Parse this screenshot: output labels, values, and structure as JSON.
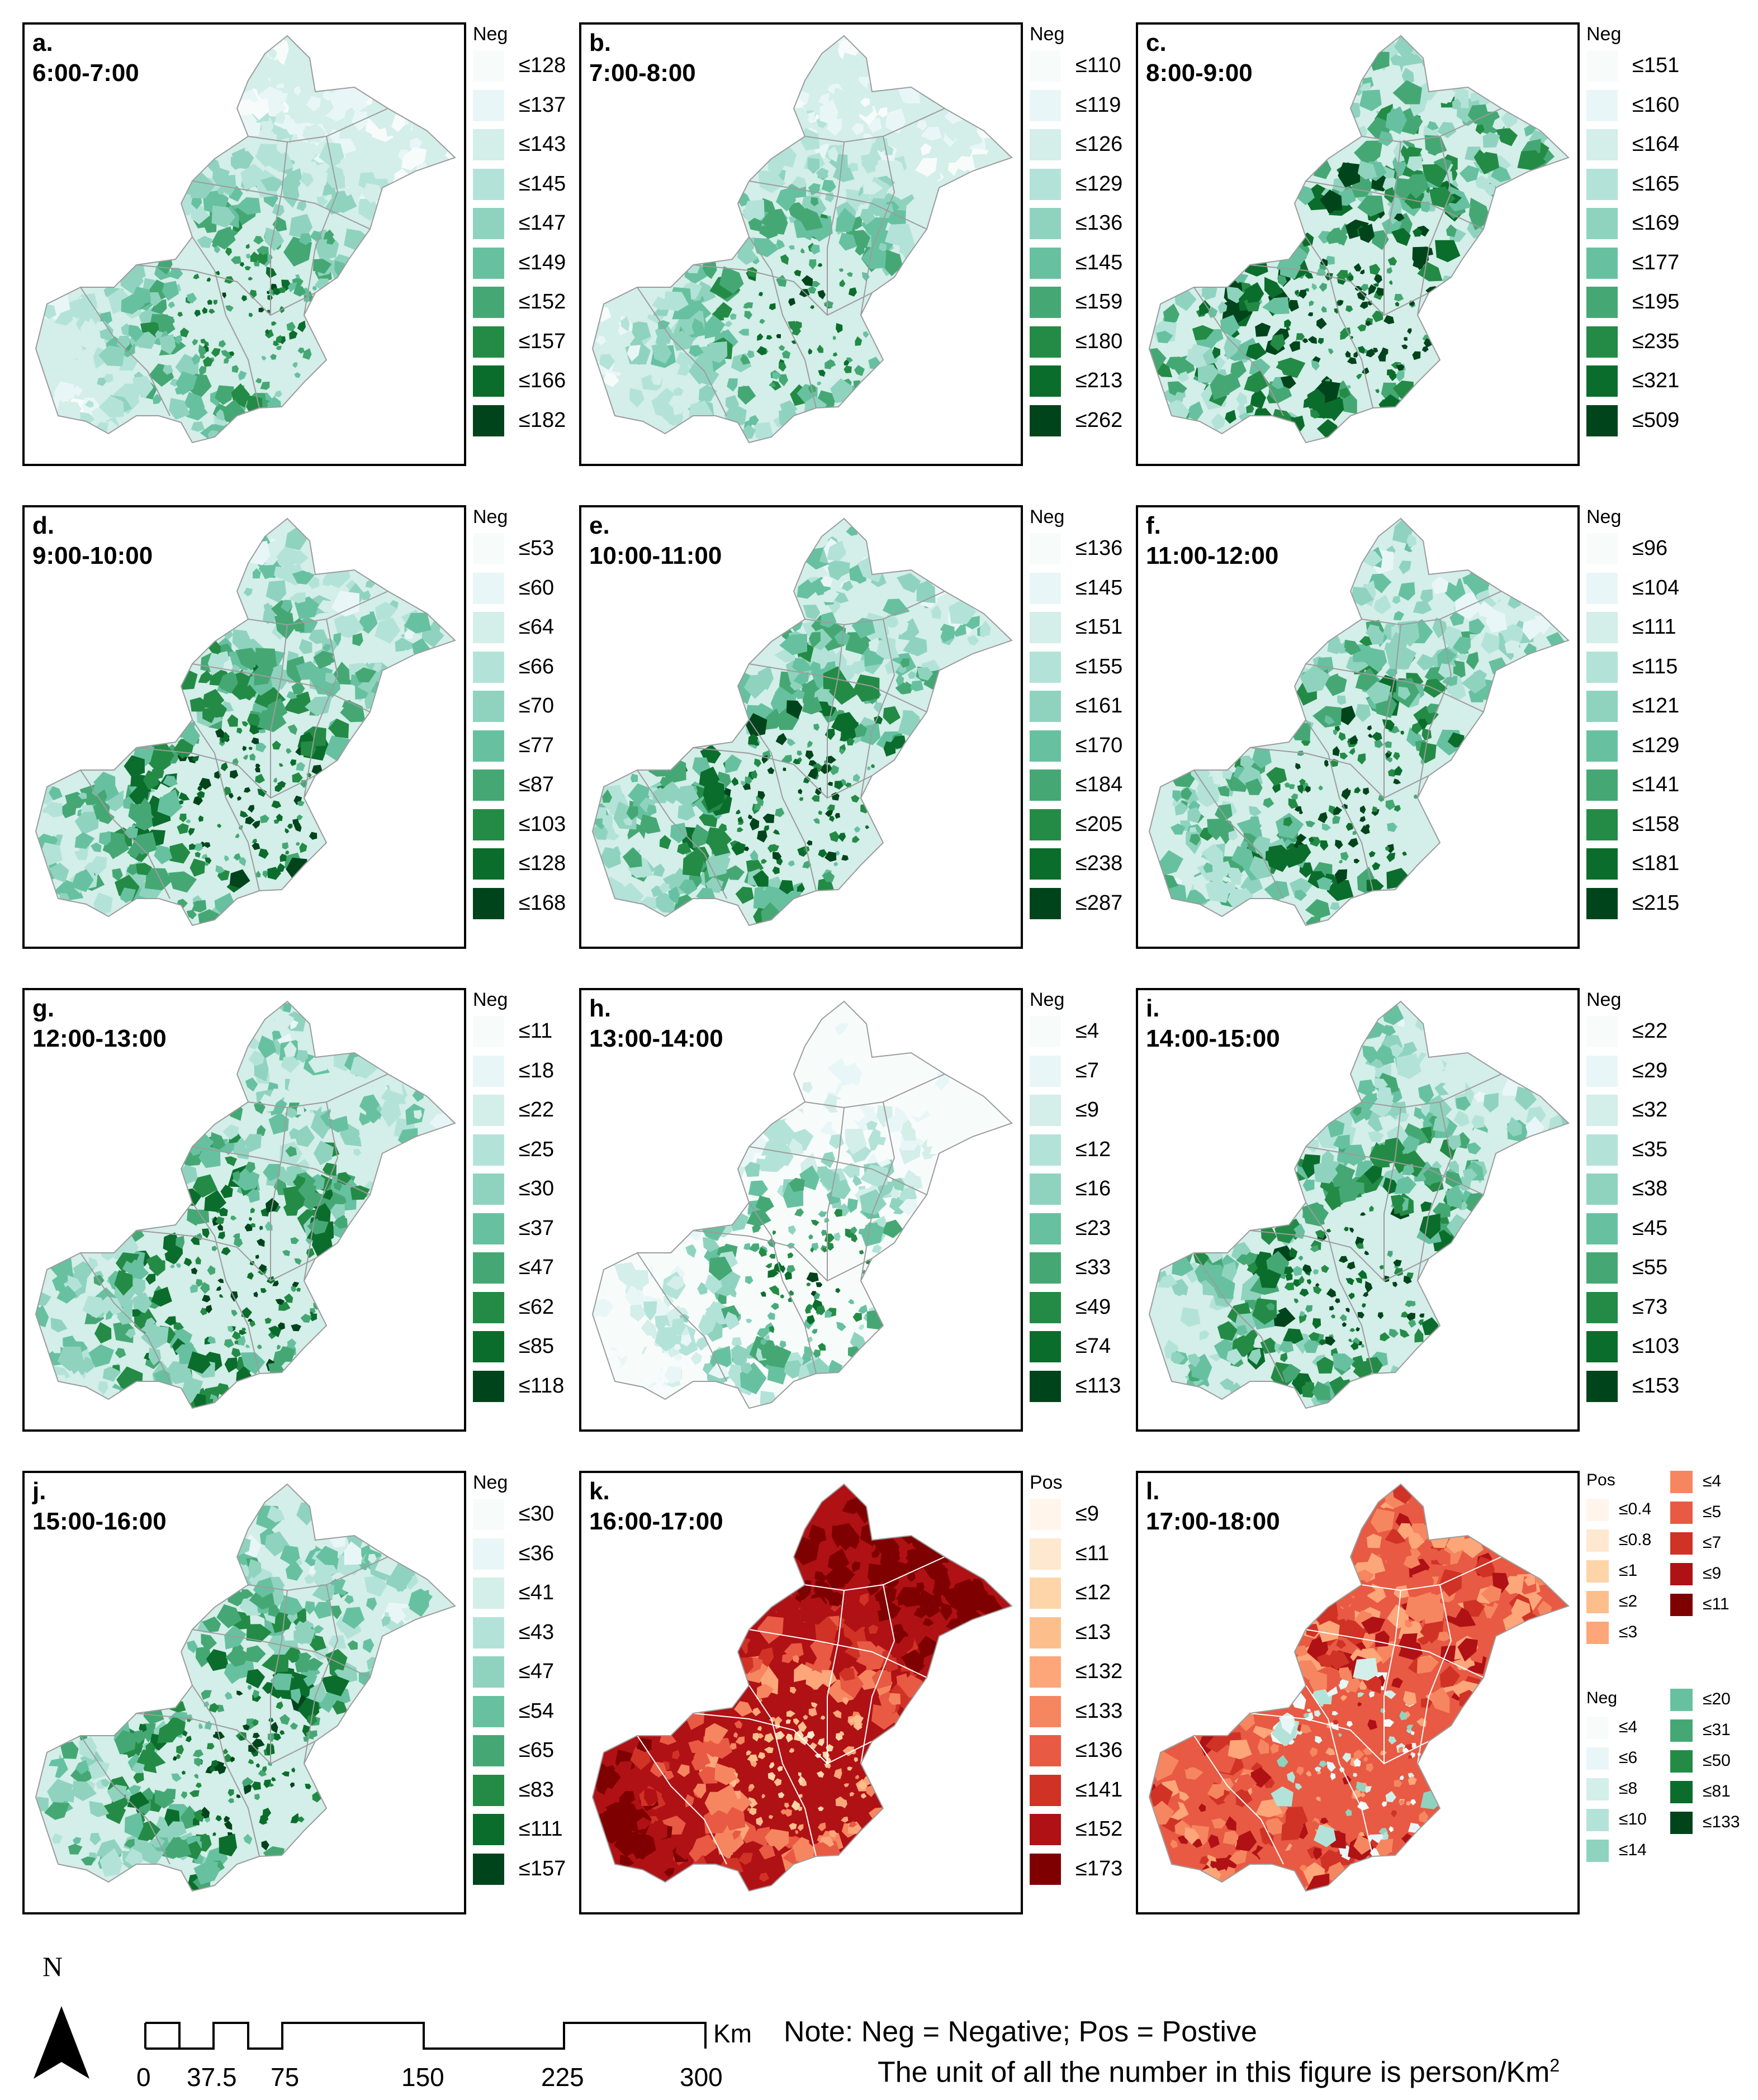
{
  "panels": [
    {
      "id": "a",
      "label": "a.",
      "time": "6:00-7:00",
      "legend_title": "Neg",
      "scheme": "green",
      "items": [
        "≤128",
        "≤137",
        "≤143",
        "≤145",
        "≤147",
        "≤149",
        "≤152",
        "≤157",
        "≤166",
        "≤182"
      ]
    },
    {
      "id": "b",
      "label": "b.",
      "time": "7:00-8:00",
      "legend_title": "Neg",
      "scheme": "green",
      "items": [
        "≤110",
        "≤119",
        "≤126",
        "≤129",
        "≤136",
        "≤145",
        "≤159",
        "≤180",
        "≤213",
        "≤262"
      ]
    },
    {
      "id": "c",
      "label": "c.",
      "time": "8:00-9:00",
      "legend_title": "Neg",
      "scheme": "green",
      "items": [
        "≤151",
        "≤160",
        "≤164",
        "≤165",
        "≤169",
        "≤177",
        "≤195",
        "≤235",
        "≤321",
        "≤509"
      ]
    },
    {
      "id": "d",
      "label": "d.",
      "time": "9:00-10:00",
      "legend_title": "Neg",
      "scheme": "green",
      "items": [
        "≤53",
        "≤60",
        "≤64",
        "≤66",
        "≤70",
        "≤77",
        "≤87",
        "≤103",
        "≤128",
        "≤168"
      ]
    },
    {
      "id": "e",
      "label": "e.",
      "time": "10:00-11:00",
      "legend_title": "Neg",
      "scheme": "green",
      "items": [
        "≤136",
        "≤145",
        "≤151",
        "≤155",
        "≤161",
        "≤170",
        "≤184",
        "≤205",
        "≤238",
        "≤287"
      ]
    },
    {
      "id": "f",
      "label": "f.",
      "time": "11:00-12:00",
      "legend_title": "Neg",
      "scheme": "green",
      "items": [
        "≤96",
        "≤104",
        "≤111",
        "≤115",
        "≤121",
        "≤129",
        "≤141",
        "≤158",
        "≤181",
        "≤215"
      ]
    },
    {
      "id": "g",
      "label": "g.",
      "time": "12:00-13:00",
      "legend_title": "Neg",
      "scheme": "green",
      "items": [
        "≤11",
        "≤18",
        "≤22",
        "≤25",
        "≤30",
        "≤37",
        "≤47",
        "≤62",
        "≤85",
        "≤118"
      ]
    },
    {
      "id": "h",
      "label": "h.",
      "time": "13:00-14:00",
      "legend_title": "Neg",
      "scheme": "green",
      "items": [
        "≤4",
        "≤7",
        "≤9",
        "≤12",
        "≤16",
        "≤23",
        "≤33",
        "≤49",
        "≤74",
        "≤113"
      ]
    },
    {
      "id": "i",
      "label": "i.",
      "time": "14:00-15:00",
      "legend_title": "Neg",
      "scheme": "green",
      "items": [
        "≤22",
        "≤29",
        "≤32",
        "≤35",
        "≤38",
        "≤45",
        "≤55",
        "≤73",
        "≤103",
        "≤153"
      ]
    },
    {
      "id": "j",
      "label": "j.",
      "time": "15:00-16:00",
      "legend_title": "Neg",
      "scheme": "green",
      "items": [
        "≤30",
        "≤36",
        "≤41",
        "≤43",
        "≤47",
        "≤54",
        "≤65",
        "≤83",
        "≤111",
        "≤157"
      ]
    },
    {
      "id": "k",
      "label": "k.",
      "time": "16:00-17:00",
      "legend_title": "Pos",
      "scheme": "red",
      "items": [
        "≤9",
        "≤11",
        "≤12",
        "≤13",
        "≤132",
        "≤133",
        "≤136",
        "≤141",
        "≤152",
        "≤173"
      ]
    },
    {
      "id": "l",
      "label": "l.",
      "time": "17:00-18:00",
      "scheme": "mixed",
      "pos_title": "Pos",
      "pos_items": [
        "≤0.4",
        "≤0.8",
        "≤1",
        "≤2",
        "≤3",
        "≤4",
        "≤5",
        "≤7",
        "≤9",
        "≤11"
      ],
      "neg_title": "Neg",
      "neg_items": [
        "≤4",
        "≤6",
        "≤8",
        "≤10",
        "≤14",
        "≤20",
        "≤31",
        "≤50",
        "≤81",
        "≤133"
      ]
    }
  ],
  "colors": {
    "green": [
      "#f7fcfb",
      "#e9f6f8",
      "#d4eee9",
      "#b3e3d8",
      "#8fd3bf",
      "#67c1a0",
      "#45a874",
      "#238b45",
      "#0b6d2c",
      "#00441b"
    ],
    "red": [
      "#fff5eb",
      "#fee8cf",
      "#fdd5a9",
      "#fcbf8c",
      "#fca67a",
      "#f68660",
      "#e85a43",
      "#d03226",
      "#b01115",
      "#7f0000"
    ],
    "outline": "#9c9c9c",
    "red_outline": "#ffffff"
  },
  "footer": {
    "north": "N",
    "scale_labels": [
      "0",
      "37.5",
      "75",
      "150",
      "225",
      "300"
    ],
    "scale_unit": "Km",
    "note_line1": "Note: Neg = Negative; Pos = Postive",
    "note_line2": "The unit of all the number in this figure is person/Km",
    "note_sup": "2"
  }
}
